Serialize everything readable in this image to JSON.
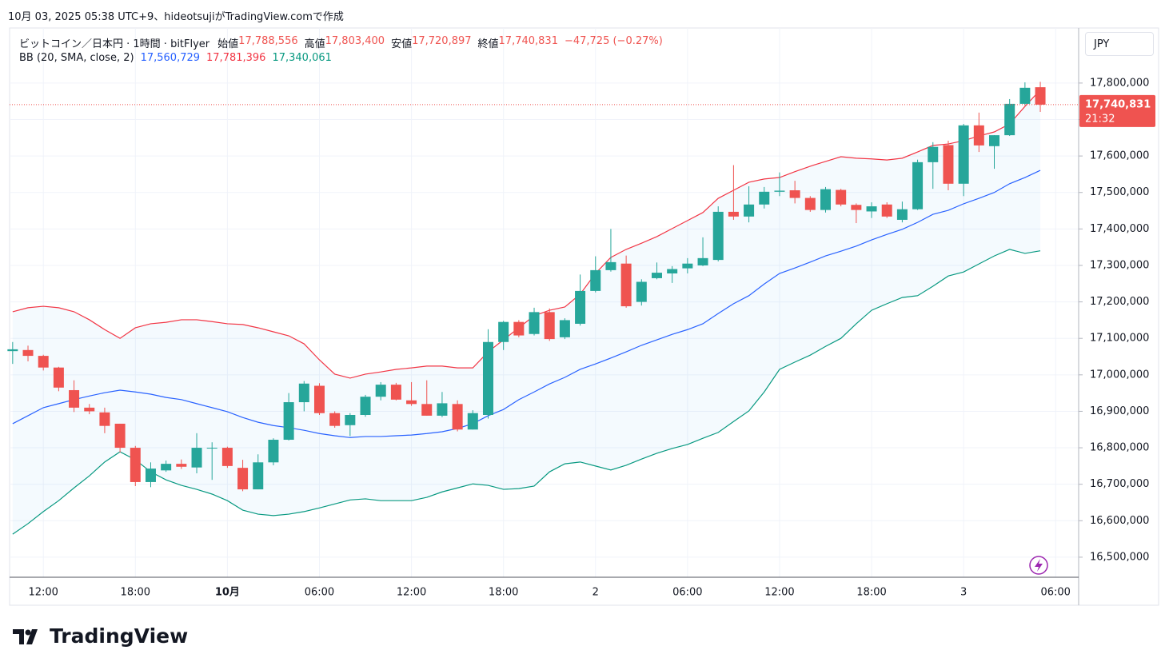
{
  "header": {
    "attribution": "10月 03, 2025 05:38 UTC+9、hideotsujiがTradingView.comで作成"
  },
  "footer": {
    "brand": "TradingView"
  },
  "chart_data": {
    "type": "candlestick",
    "title": "ビットコイン／日本円 · 1時間 · bitFlyer",
    "currency": "JPY",
    "legend": [
      {
        "label": "始値",
        "value": "17,788,556"
      },
      {
        "label": "高値",
        "value": "17,803,400"
      },
      {
        "label": "安値",
        "value": "17,720,897"
      },
      {
        "label": "終値",
        "value": "17,740,831"
      }
    ],
    "change": "−47,725 (−0.27%)",
    "last_price_label": {
      "price": "17,740,831",
      "countdown": "21:32"
    },
    "up_color": "#26a69a",
    "down_color": "#ef5350",
    "open": [
      17065000,
      17068000,
      17052000,
      17020000,
      16958000,
      16910000,
      16897000,
      16866000,
      16800000,
      16706000,
      16738000,
      16756000,
      16746000,
      16798000,
      16800000,
      16745000,
      16686000,
      16760000,
      16822000,
      16925000,
      16970000,
      16895000,
      16862000,
      16890000,
      16940000,
      16973000,
      16930000,
      16920000,
      16888000,
      16920000,
      16850000,
      16890000,
      17090000,
      17145000,
      17112000,
      17172000,
      17103000,
      17140000,
      17230000,
      17287000,
      17305000,
      17200000,
      17265000,
      17278000,
      17292000,
      17300000,
      17315000,
      17447000,
      17434000,
      17467000,
      17502000,
      17506000,
      17485000,
      17452000,
      17507000,
      17466000,
      17448000,
      17467000,
      17425000,
      17454000,
      17583000,
      17630000,
      17524000,
      17684000,
      17627000,
      17657000,
      17743000,
      17788556
    ],
    "high": [
      17090000,
      17080000,
      17055000,
      17022000,
      16985000,
      16920000,
      16910000,
      16866000,
      16805000,
      16760000,
      16765000,
      16768000,
      16840000,
      16815000,
      16803000,
      16767000,
      16782000,
      16826000,
      16950000,
      16983000,
      16977000,
      16900000,
      16895000,
      16945000,
      16980000,
      16978000,
      16980000,
      16985000,
      16953000,
      16930000,
      16903000,
      17125000,
      17148000,
      17150000,
      17184000,
      17182000,
      17155000,
      17275000,
      17325000,
      17400000,
      17327000,
      17262000,
      17308000,
      17298000,
      17320000,
      17377000,
      17462000,
      17575000,
      17517000,
      17515000,
      17555000,
      17532000,
      17490000,
      17515000,
      17510000,
      17470000,
      17473000,
      17473000,
      17475000,
      17590000,
      17638000,
      17642000,
      17688000,
      17719000,
      17657000,
      17756000,
      17802000,
      17803400
    ],
    "low": [
      17030000,
      17037000,
      17012000,
      16955000,
      16898000,
      16892000,
      16840000,
      16787000,
      16695000,
      16692000,
      16734000,
      16742000,
      16730000,
      16712000,
      16745000,
      16681000,
      16686000,
      16752000,
      16820000,
      16900000,
      16890000,
      16855000,
      16832000,
      16885000,
      16930000,
      16930000,
      16915000,
      16888000,
      16884000,
      16845000,
      16850000,
      16880000,
      17068000,
      17103000,
      17108000,
      17093000,
      17098000,
      17135000,
      17226000,
      17283000,
      17184000,
      17190000,
      17262000,
      17252000,
      17278000,
      17298000,
      17311000,
      17425000,
      17418000,
      17456000,
      17490000,
      17470000,
      17447000,
      17445000,
      17462000,
      17416000,
      17430000,
      17430000,
      17418000,
      17452000,
      17510000,
      17506000,
      17490000,
      17611000,
      17565000,
      17655000,
      17739000,
      17720897
    ],
    "close": [
      17070000,
      17052000,
      17020000,
      16965000,
      16910000,
      16900000,
      16860000,
      16800000,
      16706000,
      16743000,
      16756000,
      16748000,
      16800000,
      16800000,
      16750000,
      16686000,
      16760000,
      16822000,
      16925000,
      16976000,
      16895000,
      16860000,
      16890000,
      16940000,
      16973000,
      16932000,
      16920000,
      16888000,
      16922000,
      16850000,
      16895000,
      17090000,
      17145000,
      17108000,
      17172000,
      17098000,
      17150000,
      17230000,
      17287000,
      17309000,
      17188000,
      17255000,
      17280000,
      17290000,
      17305000,
      17320000,
      17447000,
      17434000,
      17467000,
      17502000,
      17505000,
      17485000,
      17452000,
      17509000,
      17467000,
      17452000,
      17462000,
      17434000,
      17454000,
      17583000,
      17625000,
      17524000,
      17684000,
      17629000,
      17657000,
      17743000,
      17787000,
      17740831
    ],
    "bands": {
      "label": "BB (20, SMA, close, 2)",
      "fill": "#2196f3",
      "basis": {
        "color": "#2962ff",
        "last_label": "17,560,729",
        "values": [
          16866000,
          16888000,
          16910000,
          16921000,
          16932000,
          16942000,
          16951000,
          16958000,
          16953000,
          16947000,
          16938000,
          16932000,
          16921000,
          16910000,
          16899000,
          16883000,
          16870000,
          16861000,
          16855000,
          16848000,
          16839000,
          16833000,
          16828000,
          16831000,
          16831000,
          16833000,
          16835000,
          16839000,
          16844000,
          16853000,
          16866000,
          16888000,
          16905000,
          16932000,
          16953000,
          16975000,
          16993000,
          17015000,
          17030000,
          17046000,
          17063000,
          17081000,
          17096000,
          17111000,
          17124000,
          17140000,
          17168000,
          17195000,
          17217000,
          17249000,
          17278000,
          17293000,
          17309000,
          17326000,
          17339000,
          17353000,
          17370000,
          17385000,
          17399000,
          17418000,
          17440000,
          17451000,
          17469000,
          17484000,
          17500000,
          17524000,
          17541000,
          17560729
        ]
      },
      "upper": {
        "color": "#f23645",
        "last_label": "17,781,396",
        "values": [
          17173000,
          17184000,
          17188000,
          17184000,
          17173000,
          17151000,
          17124000,
          17100000,
          17129000,
          17140000,
          17144000,
          17151000,
          17151000,
          17146000,
          17140000,
          17138000,
          17129000,
          17118000,
          17107000,
          17085000,
          17041000,
          17002000,
          16991000,
          17002000,
          17008000,
          17015000,
          17019000,
          17024000,
          17024000,
          17019000,
          17019000,
          17063000,
          17096000,
          17129000,
          17162000,
          17177000,
          17186000,
          17221000,
          17278000,
          17322000,
          17344000,
          17361000,
          17379000,
          17401000,
          17423000,
          17445000,
          17484000,
          17506000,
          17528000,
          17537000,
          17541000,
          17557000,
          17572000,
          17585000,
          17598000,
          17594000,
          17592000,
          17589000,
          17594000,
          17611000,
          17629000,
          17633000,
          17642000,
          17655000,
          17666000,
          17688000,
          17736000,
          17781396
        ]
      },
      "lower": {
        "color": "#089981",
        "last_label": "17,340,061",
        "values": [
          16563000,
          16592000,
          16625000,
          16655000,
          16690000,
          16723000,
          16761000,
          16789000,
          16767000,
          16734000,
          16712000,
          16697000,
          16686000,
          16673000,
          16655000,
          16629000,
          16618000,
          16614000,
          16618000,
          16625000,
          16635000,
          16646000,
          16657000,
          16660000,
          16655000,
          16655000,
          16655000,
          16664000,
          16679000,
          16690000,
          16701000,
          16697000,
          16686000,
          16688000,
          16695000,
          16734000,
          16756000,
          16761000,
          16750000,
          16739000,
          16752000,
          16769000,
          16785000,
          16798000,
          16809000,
          16826000,
          16842000,
          16872000,
          16901000,
          16953000,
          17015000,
          17035000,
          17054000,
          17078000,
          17100000,
          17140000,
          17177000,
          17195000,
          17212000,
          17217000,
          17243000,
          17271000,
          17282000,
          17304000,
          17326000,
          17344000,
          17333000,
          17340061
        ]
      }
    },
    "xlim": [
      -0.2,
      69.5
    ],
    "xticks": [
      {
        "value": 2,
        "label": "12:00"
      },
      {
        "value": 8,
        "label": "18:00"
      },
      {
        "value": 14,
        "label": "10月"
      },
      {
        "value": 20,
        "label": "06:00"
      },
      {
        "value": 26,
        "label": "12:00"
      },
      {
        "value": 32,
        "label": "18:00"
      },
      {
        "value": 38,
        "label": "2"
      },
      {
        "value": 44,
        "label": "06:00"
      },
      {
        "value": 50,
        "label": "12:00"
      },
      {
        "value": 56,
        "label": "18:00"
      },
      {
        "value": 62,
        "label": "3"
      },
      {
        "value": 68,
        "label": "06:00"
      }
    ],
    "ylim": [
      16445000,
      17951000
    ],
    "yticks": [
      {
        "value": 16500000,
        "label": "16,500,000"
      },
      {
        "value": 16600000,
        "label": "16,600,000"
      },
      {
        "value": 16700000,
        "label": "16,700,000"
      },
      {
        "value": 16800000,
        "label": "16,800,000"
      },
      {
        "value": 16900000,
        "label": "16,900,000"
      },
      {
        "value": 17000000,
        "label": "17,000,000"
      },
      {
        "value": 17100000,
        "label": "17,100,000"
      },
      {
        "value": 17200000,
        "label": "17,200,000"
      },
      {
        "value": 17300000,
        "label": "17,300,000"
      },
      {
        "value": 17400000,
        "label": "17,400,000"
      },
      {
        "value": 17500000,
        "label": "17,500,000"
      },
      {
        "value": 17600000,
        "label": "17,600,000"
      },
      {
        "value": 17700000,
        "label": "17,700,000"
      },
      {
        "value": 17800000,
        "label": "17,800,000"
      }
    ],
    "grid": true
  }
}
